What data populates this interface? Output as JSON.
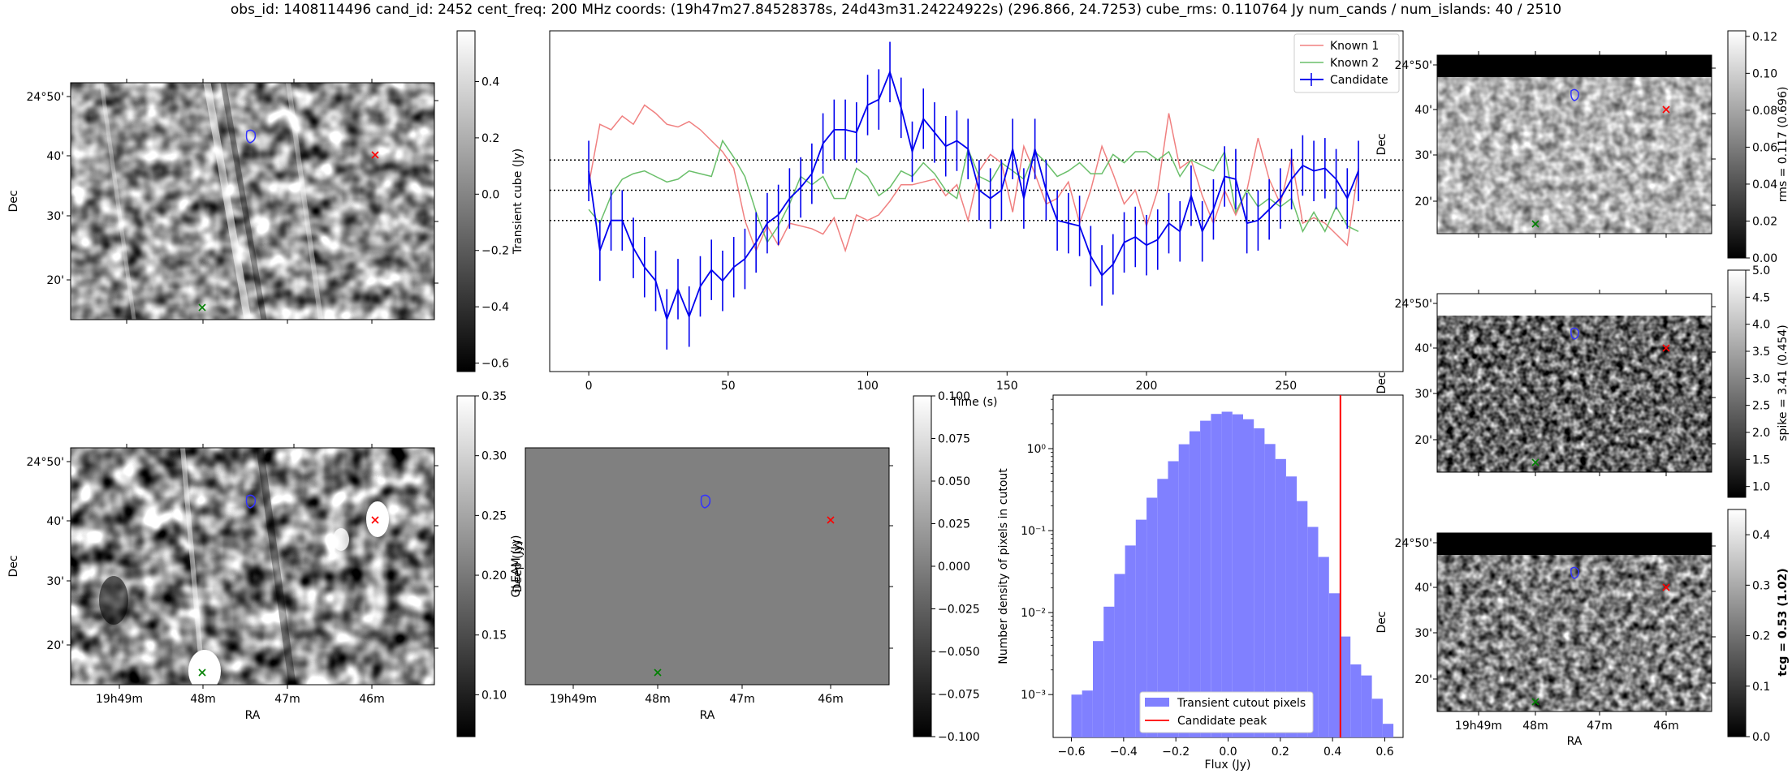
{
  "figure": {
    "title": "obs_id: 1408114496 cand_id: 2452 cent_freq: 200 MHz coords: (19h47m27.84528378s, 24d43m31.24224922s) (296.866, 24.7253) cube_rms: 0.110764 Jy num_cands / num_islands: 40 / 2510"
  },
  "colors": {
    "known1": "#f08080",
    "known2": "#6abf6a",
    "candidate": "#0000ee",
    "hist_fill": "#8080ff",
    "candidate_peak": "#ff0000",
    "marker_red": "#ff0000",
    "marker_green": "#008000",
    "contour": "#3333ff"
  },
  "sky_axes": {
    "dec_ticks": [
      "24°50'",
      "40'",
      "30'",
      "20'"
    ],
    "ra_ticks": [
      "19h49m",
      "48m",
      "47m",
      "46m"
    ],
    "ra_label": "RA",
    "dec_label": "Dec"
  },
  "panels": {
    "transient_cutout": {
      "dec_label": "Dec",
      "cbar_label": "Transient cube (Jy)",
      "cbar_ticks": [
        "0.4",
        "0.2",
        "0.0",
        "−0.2",
        "−0.4",
        "−0.6"
      ],
      "cbar_range": [
        -0.63,
        0.58
      ]
    },
    "deep_cutout": {
      "dec_label": "Dec",
      "ra_label": "RA",
      "cbar_label": "Deep (Jy)",
      "cbar_ticks": [
        "0.35",
        "0.30",
        "0.25",
        "0.20",
        "0.15",
        "0.10"
      ],
      "cbar_range": [
        0.065,
        0.35
      ]
    },
    "gleam_cutout": {
      "ra_label": "RA",
      "cbar_label": "GLEAM (Jy)",
      "cbar_ticks": [
        "0.100",
        "0.075",
        "0.050",
        "0.025",
        "0.000",
        "−0.025",
        "−0.050",
        "−0.075",
        "−0.100"
      ],
      "cbar_range": [
        -0.1,
        0.1
      ]
    },
    "rms_cutout": {
      "dec_label": "Dec",
      "cbar_label": "rms = 0.117 (0.696)",
      "cbar_ticks": [
        "0.12",
        "0.10",
        "0.08",
        "0.06",
        "0.04",
        "0.02",
        "0.00"
      ],
      "cbar_range": [
        0,
        0.123
      ]
    },
    "spike_cutout": {
      "dec_label": "Dec",
      "cbar_label": "spike = 3.41 (0.454)",
      "cbar_ticks": [
        "5.0",
        "4.5",
        "4.0",
        "3.5",
        "3.0",
        "2.5",
        "2.0",
        "1.5",
        "1.0"
      ],
      "cbar_range": [
        0.8,
        5.0
      ]
    },
    "tcg_cutout": {
      "dec_label": "Dec",
      "ra_label": "RA",
      "cbar_label": "tcg = 0.53 (1.02)",
      "cbar_ticks": [
        "0.4",
        "0.3",
        "0.2",
        "0.1",
        "0.0"
      ],
      "cbar_range": [
        0,
        0.45
      ]
    }
  },
  "chart_data": [
    {
      "type": "line",
      "title": "",
      "xlabel": "Time (s)",
      "ylabel": "",
      "xlim": [
        -14,
        292
      ],
      "ylim": [
        -0.66,
        0.58
      ],
      "x_ticks": [
        0,
        50,
        100,
        150,
        200,
        250
      ],
      "hlines": [
        0.11,
        0.0,
        -0.11
      ],
      "legend_position": "top-right",
      "x": [
        0,
        4,
        8,
        12,
        16,
        20,
        24,
        28,
        32,
        36,
        40,
        44,
        48,
        52,
        56,
        60,
        64,
        68,
        72,
        76,
        80,
        84,
        88,
        92,
        96,
        100,
        104,
        108,
        112,
        116,
        120,
        124,
        128,
        132,
        136,
        140,
        144,
        148,
        152,
        156,
        160,
        164,
        168,
        172,
        176,
        180,
        184,
        188,
        192,
        196,
        200,
        204,
        208,
        212,
        216,
        220,
        224,
        228,
        232,
        236,
        240,
        244,
        248,
        252,
        256,
        260,
        264,
        268,
        272,
        276
      ],
      "series": [
        {
          "name": "Known 1",
          "values": [
            0.02,
            0.24,
            0.22,
            0.27,
            0.24,
            0.31,
            0.28,
            0.24,
            0.23,
            0.25,
            0.22,
            0.18,
            0.14,
            0.08,
            -0.11,
            -0.22,
            -0.13,
            -0.2,
            -0.12,
            -0.13,
            -0.14,
            -0.16,
            -0.1,
            -0.22,
            -0.09,
            -0.11,
            -0.09,
            -0.04,
            0.02,
            0.02,
            0.03,
            0.04,
            -0.02,
            0.02,
            -0.11,
            0.07,
            0.13,
            0.1,
            -0.08,
            0.16,
            0.06,
            -0.05,
            -0.03,
            0.03,
            -0.12,
            0.0,
            0.16,
            0.06,
            -0.05,
            0.0,
            -0.13,
            0.0,
            0.28,
            0.08,
            0.11,
            -0.02,
            -0.12,
            0.0,
            -0.09,
            0.0,
            0.19,
            0.04,
            -0.05,
            0.12,
            -0.12,
            -0.1,
            -0.12,
            -0.16,
            -0.2,
            0.08
          ]
        },
        {
          "name": "Known 2",
          "values": [
            -0.07,
            -0.12,
            -0.02,
            0.04,
            0.06,
            0.07,
            0.05,
            0.03,
            0.04,
            0.07,
            0.06,
            0.05,
            0.18,
            0.12,
            0.05,
            -0.08,
            -0.19,
            -0.13,
            -0.05,
            0.05,
            0.02,
            0.05,
            -0.03,
            -0.03,
            0.08,
            0.05,
            -0.02,
            0.01,
            0.07,
            0.05,
            0.1,
            0.06,
            0.0,
            -0.03,
            0.15,
            0.05,
            0.03,
            0.1,
            0.07,
            0.04,
            0.14,
            0.1,
            0.05,
            0.07,
            0.1,
            0.06,
            0.06,
            0.13,
            0.1,
            0.14,
            0.14,
            0.11,
            0.14,
            0.05,
            0.11,
            0.09,
            0.07,
            0.14,
            -0.08,
            0.0,
            -0.06,
            -0.03,
            -0.06,
            -0.03,
            -0.15,
            -0.08,
            -0.15,
            -0.06,
            -0.13,
            -0.15
          ]
        },
        {
          "name": "Candidate",
          "values": [
            0.07,
            -0.22,
            -0.11,
            -0.11,
            -0.21,
            -0.28,
            -0.33,
            -0.47,
            -0.36,
            -0.46,
            -0.35,
            -0.29,
            -0.33,
            -0.28,
            -0.25,
            -0.19,
            -0.12,
            -0.09,
            -0.03,
            0.01,
            0.06,
            0.17,
            0.22,
            0.22,
            0.21,
            0.31,
            0.33,
            0.43,
            0.3,
            0.14,
            0.26,
            0.21,
            0.16,
            0.18,
            0.15,
            0.0,
            -0.03,
            0.0,
            0.15,
            -0.03,
            0.15,
            0.0,
            -0.11,
            -0.12,
            -0.13,
            -0.24,
            -0.31,
            -0.27,
            -0.19,
            -0.17,
            -0.2,
            -0.18,
            -0.12,
            -0.15,
            -0.02,
            -0.15,
            -0.07,
            0.05,
            0.04,
            -0.12,
            -0.11,
            -0.07,
            -0.03,
            0.04,
            0.09,
            0.07,
            0.08,
            0.04,
            -0.03,
            0.07
          ],
          "error": 0.11
        }
      ]
    },
    {
      "type": "bar",
      "title": "",
      "xlabel": "Flux (Jy)",
      "ylabel": "Number density of pixels in cutout",
      "y_scale": "log",
      "xlim": [
        -0.67,
        0.67
      ],
      "ylim": [
        0.0003,
        4.5
      ],
      "x_ticks": [
        -0.6,
        -0.4,
        -0.2,
        0.0,
        0.2,
        0.4,
        0.6
      ],
      "y_tick_labels": [
        "10⁰",
        "10⁻¹",
        "10⁻²",
        "10⁻³"
      ],
      "bin_edges": [
        -0.6,
        -0.5589,
        -0.5178,
        -0.4767,
        -0.4356,
        -0.3945,
        -0.3534,
        -0.3123,
        -0.2712,
        -0.2301,
        -0.189,
        -0.1479,
        -0.1068,
        -0.0657,
        -0.0246,
        0.0165,
        0.0576,
        0.0987,
        0.1398,
        0.1809,
        0.222,
        0.2631,
        0.3042,
        0.3453,
        0.3864,
        0.4275,
        0.4686,
        0.5097,
        0.5508,
        0.5919,
        0.633
      ],
      "values": [
        0.001,
        0.00112,
        0.0045,
        0.0118,
        0.0296,
        0.0659,
        0.136,
        0.252,
        0.428,
        0.703,
        1.13,
        1.63,
        2.19,
        2.65,
        2.82,
        2.62,
        2.28,
        1.77,
        1.14,
        0.748,
        0.458,
        0.229,
        0.111,
        0.0477,
        0.0172,
        0.00511,
        0.00233,
        0.00171,
        0.00089,
        0.00044
      ],
      "series": [
        {
          "name": "Transient cutout pixels"
        },
        {
          "name": "Candidate peak",
          "value": 0.43
        }
      ],
      "legend_position": "bottom-center"
    }
  ]
}
